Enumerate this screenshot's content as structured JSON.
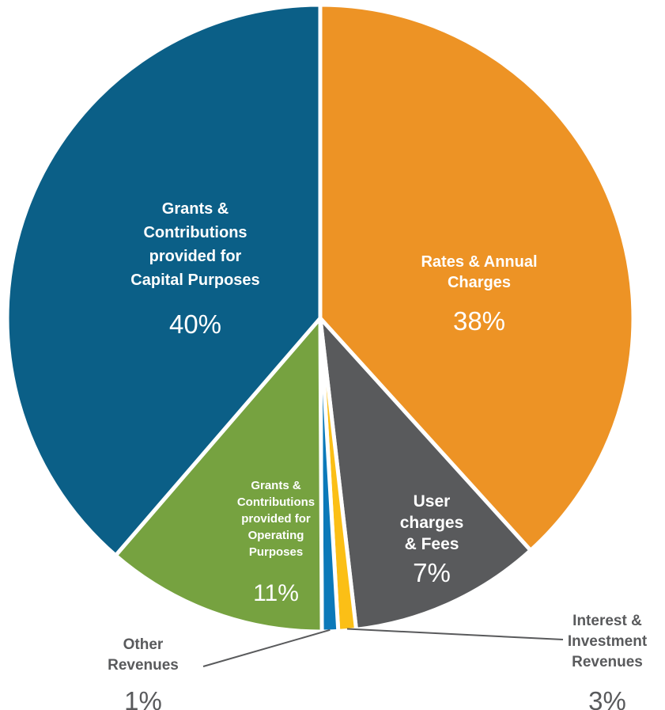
{
  "chart_data": {
    "type": "pie",
    "title": "",
    "slices": [
      {
        "label_lines": [
          "Rates & Annual",
          "Charges"
        ],
        "value": 38,
        "value_label": "38%",
        "color": "#ed9325",
        "text_color": "#ffffff"
      },
      {
        "label_lines": [
          "User",
          "charges",
          "& Fees"
        ],
        "value": 7,
        "value_label": "7%",
        "color": "#595a5c",
        "text_color": "#ffffff"
      },
      {
        "label_lines": [
          "Interest &",
          "Investment",
          "Revenues"
        ],
        "value": 3,
        "value_label": "3%",
        "color": "#fbbf16",
        "text_color": "#595a5c"
      },
      {
        "label_lines": [
          "Other",
          "Revenues"
        ],
        "value": 1,
        "value_label": "1%",
        "color": "#0b79b9",
        "text_color": "#595a5c"
      },
      {
        "label_lines": [
          "Grants &",
          "Contributions",
          "provided for",
          "Operating",
          "Purposes"
        ],
        "value": 11,
        "value_label": "11%",
        "color": "#76a240",
        "text_color": "#ffffff"
      },
      {
        "label_lines": [
          "Grants &",
          "Contributions",
          "provided for",
          "Capital Purposes"
        ],
        "value": 40,
        "value_label": "40%",
        "color": "#0b5f87",
        "text_color": "#ffffff"
      }
    ]
  }
}
